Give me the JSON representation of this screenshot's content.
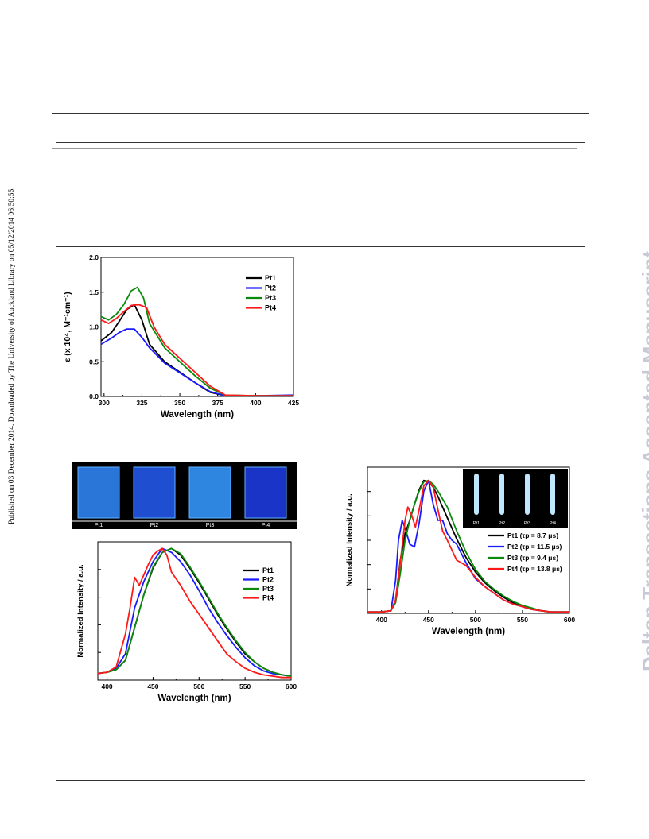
{
  "sidebar_text": "Published on 03 December 2014. Downloaded by The University of Auckland Library on 05/12/2014 06:50:55.",
  "watermark": "Dalton Transactions Accepted Manuscript",
  "photo_film": {
    "labels": [
      "Pt1",
      "Pt2",
      "Pt3",
      "Pt4"
    ],
    "colors": [
      "#2a76d8",
      "#1f4fd0",
      "#2f86e0",
      "#1a34c8"
    ]
  },
  "photo_tube": {
    "labels": [
      "Pt1",
      "Pt2",
      "Pt3",
      "Pt4"
    ]
  },
  "series_colors": {
    "Pt1": "#000000",
    "Pt2": "#1a1aff",
    "Pt3": "#0a8a0a",
    "Pt4": "#ff1a1a"
  },
  "chart_data": [
    {
      "type": "line",
      "xlabel": "Wavelength (nm)",
      "ylabel": "ε (x 10⁴, M⁻¹cm⁻¹)",
      "xlim": [
        298,
        425
      ],
      "ylim": [
        0,
        2.0
      ],
      "xticks": [
        "300",
        "325",
        "350",
        "375",
        "400",
        "425"
      ],
      "yticks": [
        "0.0",
        "0.5",
        "1.0",
        "1.5",
        "2.0"
      ],
      "legend": [
        "Pt1",
        "Pt2",
        "Pt3",
        "Pt4"
      ],
      "legend_position": "top-right",
      "series": [
        {
          "name": "Pt1",
          "x": [
            298,
            305,
            310,
            315,
            320,
            325,
            330,
            340,
            350,
            360,
            370,
            380,
            400,
            425
          ],
          "y": [
            0.8,
            0.92,
            1.08,
            1.25,
            1.32,
            1.1,
            0.75,
            0.5,
            0.35,
            0.2,
            0.06,
            0.01,
            0.01,
            0.01
          ]
        },
        {
          "name": "Pt2",
          "x": [
            298,
            305,
            310,
            315,
            320,
            325,
            330,
            340,
            350,
            360,
            370,
            380,
            400,
            425
          ],
          "y": [
            0.75,
            0.84,
            0.92,
            0.97,
            0.97,
            0.85,
            0.7,
            0.48,
            0.34,
            0.2,
            0.07,
            0.01,
            0.01,
            0.02
          ]
        },
        {
          "name": "Pt3",
          "x": [
            298,
            303,
            308,
            313,
            318,
            322,
            326,
            330,
            340,
            350,
            360,
            370,
            380,
            400,
            425
          ],
          "y": [
            1.15,
            1.1,
            1.18,
            1.32,
            1.52,
            1.57,
            1.42,
            1.05,
            0.7,
            0.5,
            0.3,
            0.12,
            0.02,
            0.01,
            0.01
          ]
        },
        {
          "name": "Pt4",
          "x": [
            298,
            303,
            308,
            313,
            318,
            323,
            328,
            333,
            340,
            350,
            360,
            370,
            380,
            400,
            425
          ],
          "y": [
            1.1,
            1.05,
            1.12,
            1.22,
            1.31,
            1.32,
            1.28,
            1.0,
            0.75,
            0.55,
            0.35,
            0.15,
            0.02,
            0.01,
            0.01
          ]
        }
      ]
    },
    {
      "type": "line",
      "xlabel": "Wavelength (nm)",
      "ylabel": "Normalized Intensity / a.u.",
      "xlim": [
        390,
        600
      ],
      "ylim": [
        0,
        1.05
      ],
      "xticks": [
        "400",
        "450",
        "500",
        "550",
        "600"
      ],
      "legend": [
        "Pt1",
        "Pt2",
        "Pt3",
        "Pt4"
      ],
      "legend_position": "top-right",
      "series": [
        {
          "name": "Pt1",
          "x": [
            390,
            400,
            410,
            420,
            430,
            440,
            450,
            460,
            470,
            480,
            490,
            500,
            510,
            520,
            530,
            540,
            550,
            560,
            570,
            580,
            590,
            600
          ],
          "y": [
            0.05,
            0.06,
            0.08,
            0.15,
            0.4,
            0.65,
            0.85,
            0.97,
            1.0,
            0.95,
            0.85,
            0.74,
            0.62,
            0.5,
            0.39,
            0.29,
            0.2,
            0.14,
            0.09,
            0.06,
            0.04,
            0.03
          ]
        },
        {
          "name": "Pt2",
          "x": [
            390,
            400,
            410,
            420,
            430,
            440,
            450,
            460,
            470,
            480,
            490,
            500,
            510,
            520,
            530,
            540,
            550,
            560,
            570,
            580,
            590,
            600
          ],
          "y": [
            0.05,
            0.06,
            0.09,
            0.2,
            0.55,
            0.75,
            0.9,
            1.0,
            0.97,
            0.9,
            0.8,
            0.68,
            0.55,
            0.44,
            0.34,
            0.25,
            0.17,
            0.11,
            0.07,
            0.05,
            0.04,
            0.03
          ]
        },
        {
          "name": "Pt3",
          "x": [
            390,
            400,
            410,
            420,
            430,
            440,
            450,
            460,
            470,
            480,
            490,
            500,
            510,
            520,
            530,
            540,
            550,
            560,
            570,
            580,
            590,
            600
          ],
          "y": [
            0.05,
            0.06,
            0.08,
            0.15,
            0.4,
            0.65,
            0.86,
            0.97,
            1.0,
            0.96,
            0.86,
            0.75,
            0.63,
            0.51,
            0.4,
            0.3,
            0.21,
            0.14,
            0.09,
            0.06,
            0.04,
            0.03
          ]
        },
        {
          "name": "Pt4",
          "x": [
            390,
            400,
            410,
            420,
            425,
            430,
            435,
            440,
            445,
            450,
            455,
            460,
            465,
            470,
            480,
            490,
            500,
            510,
            520,
            530,
            540,
            550,
            560,
            570,
            580,
            590,
            600
          ],
          "y": [
            0.05,
            0.06,
            0.1,
            0.35,
            0.55,
            0.78,
            0.72,
            0.8,
            0.88,
            0.95,
            0.98,
            1.0,
            0.95,
            0.82,
            0.72,
            0.6,
            0.5,
            0.4,
            0.3,
            0.2,
            0.14,
            0.09,
            0.06,
            0.04,
            0.03,
            0.02,
            0.02
          ]
        }
      ]
    },
    {
      "type": "line",
      "xlabel": "Wavelength (nm)",
      "ylabel": "Normalized Intensity / a.u.",
      "xlim": [
        385,
        600
      ],
      "ylim": [
        0,
        1.1
      ],
      "xticks": [
        "400",
        "450",
        "500",
        "550",
        "600"
      ],
      "legend": [
        "Pt1 (τp = 8.7 μs)",
        "Pt2 (τp = 11.5 μs)",
        "Pt3 (τp = 9.4 μs)",
        "Pt4 (τp = 13.8 μs)"
      ],
      "legend_position": "right",
      "series": [
        {
          "name": "Pt1",
          "x": [
            385,
            400,
            410,
            415,
            420,
            425,
            430,
            435,
            440,
            445,
            450,
            455,
            460,
            470,
            480,
            490,
            500,
            510,
            520,
            530,
            540,
            550,
            560,
            570,
            580,
            590,
            600
          ],
          "y": [
            0.01,
            0.01,
            0.02,
            0.1,
            0.4,
            0.6,
            0.7,
            0.82,
            0.93,
            1.0,
            0.99,
            0.95,
            0.88,
            0.72,
            0.56,
            0.42,
            0.31,
            0.23,
            0.17,
            0.12,
            0.08,
            0.05,
            0.03,
            0.02,
            0.01,
            0.01,
            0.01
          ]
        },
        {
          "name": "Pt2",
          "x": [
            385,
            400,
            410,
            415,
            418,
            422,
            426,
            430,
            435,
            440,
            445,
            450,
            455,
            460,
            465,
            470,
            475,
            480,
            490,
            500,
            510,
            520,
            530,
            540,
            550,
            560,
            570,
            580,
            590,
            600
          ],
          "y": [
            0.01,
            0.01,
            0.02,
            0.25,
            0.55,
            0.7,
            0.62,
            0.52,
            0.5,
            0.68,
            0.92,
            1.0,
            0.82,
            0.7,
            0.7,
            0.6,
            0.55,
            0.52,
            0.38,
            0.26,
            0.2,
            0.15,
            0.1,
            0.07,
            0.05,
            0.03,
            0.02,
            0.01,
            0.01,
            0.01
          ]
        },
        {
          "name": "Pt3",
          "x": [
            385,
            400,
            410,
            415,
            420,
            425,
            430,
            435,
            440,
            445,
            450,
            455,
            460,
            470,
            480,
            490,
            500,
            510,
            520,
            530,
            540,
            550,
            560,
            570,
            580,
            590,
            600
          ],
          "y": [
            0.01,
            0.01,
            0.02,
            0.08,
            0.3,
            0.55,
            0.7,
            0.82,
            0.92,
            0.99,
            1.0,
            0.97,
            0.92,
            0.8,
            0.62,
            0.46,
            0.33,
            0.24,
            0.18,
            0.13,
            0.09,
            0.06,
            0.04,
            0.02,
            0.01,
            0.01,
            0.01
          ]
        },
        {
          "name": "Pt4",
          "x": [
            385,
            400,
            410,
            415,
            420,
            425,
            428,
            432,
            436,
            440,
            445,
            450,
            455,
            460,
            465,
            470,
            480,
            485,
            490,
            500,
            510,
            520,
            530,
            540,
            550,
            560,
            570,
            580,
            590,
            600
          ],
          "y": [
            0.01,
            0.01,
            0.02,
            0.1,
            0.38,
            0.7,
            0.8,
            0.74,
            0.65,
            0.78,
            0.96,
            1.0,
            0.95,
            0.78,
            0.62,
            0.55,
            0.4,
            0.38,
            0.36,
            0.27,
            0.2,
            0.15,
            0.1,
            0.07,
            0.05,
            0.03,
            0.02,
            0.01,
            0.01,
            0.01
          ]
        }
      ]
    }
  ]
}
